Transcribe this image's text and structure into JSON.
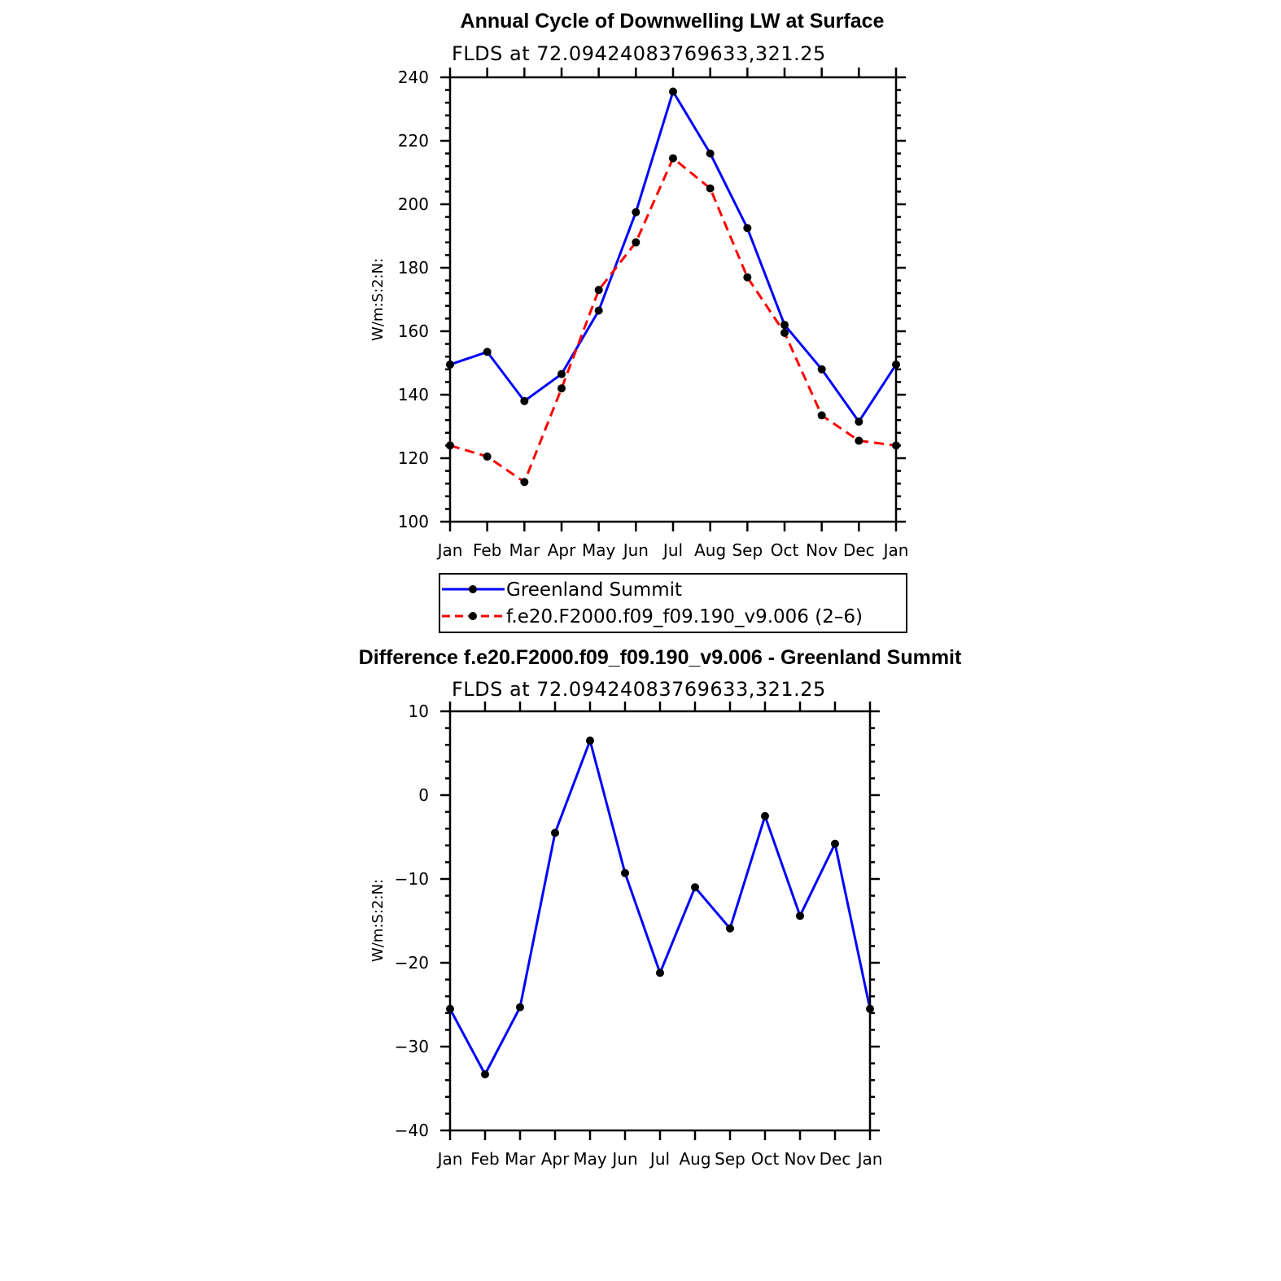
{
  "chart_data": [
    {
      "type": "line",
      "title": "Annual Cycle of Downwelling LW at Surface",
      "subtitle": "FLDS at 72.09424083769633,321.25",
      "ylabel": "W/m:S:2:N:",
      "xlabel": "",
      "ylim": [
        100,
        240
      ],
      "yticks": [
        "100",
        "120",
        "140",
        "160",
        "180",
        "200",
        "220",
        "240"
      ],
      "categories": [
        "Jan",
        "Feb",
        "Mar",
        "Apr",
        "May",
        "Jun",
        "Jul",
        "Aug",
        "Sep",
        "Oct",
        "Nov",
        "Dec",
        "Jan"
      ],
      "series": [
        {
          "name": "Greenland Summit",
          "color": "#0000ff",
          "dash": "solid",
          "values": [
            149.5,
            153.5,
            138,
            146.5,
            166.5,
            197.5,
            235.5,
            216,
            192.5,
            162,
            148,
            131.5,
            149.5
          ]
        },
        {
          "name": "f.e20.F2000.f09_f09.190_v9.006 (2–6)",
          "color": "#ff0000",
          "dash": "dashed",
          "values": [
            124,
            120.5,
            112.5,
            142,
            173,
            188,
            214.5,
            205,
            177,
            159.5,
            133.5,
            125.5,
            124
          ]
        }
      ],
      "legend": "below"
    },
    {
      "type": "line",
      "title": "Difference f.e20.F2000.f09_f09.190_v9.006 - Greenland Summit",
      "subtitle": "FLDS at 72.09424083769633,321.25",
      "ylabel": "W/m:S:2:N:",
      "xlabel": "",
      "ylim": [
        -40,
        10
      ],
      "yticks": [
        "−40",
        "−30",
        "−20",
        "−10",
        "0",
        "10"
      ],
      "categories": [
        "Jan",
        "Feb",
        "Mar",
        "Apr",
        "May",
        "Jun",
        "Jul",
        "Aug",
        "Sep",
        "Oct",
        "Nov",
        "Dec",
        "Jan"
      ],
      "series": [
        {
          "name": "Difference",
          "color": "#0000ff",
          "dash": "solid",
          "values": [
            -25.5,
            -33.3,
            -25.3,
            -4.5,
            6.5,
            -9.3,
            -21.2,
            -11,
            -15.9,
            -2.5,
            -14.4,
            -5.8,
            -25.5
          ]
        }
      ]
    }
  ]
}
